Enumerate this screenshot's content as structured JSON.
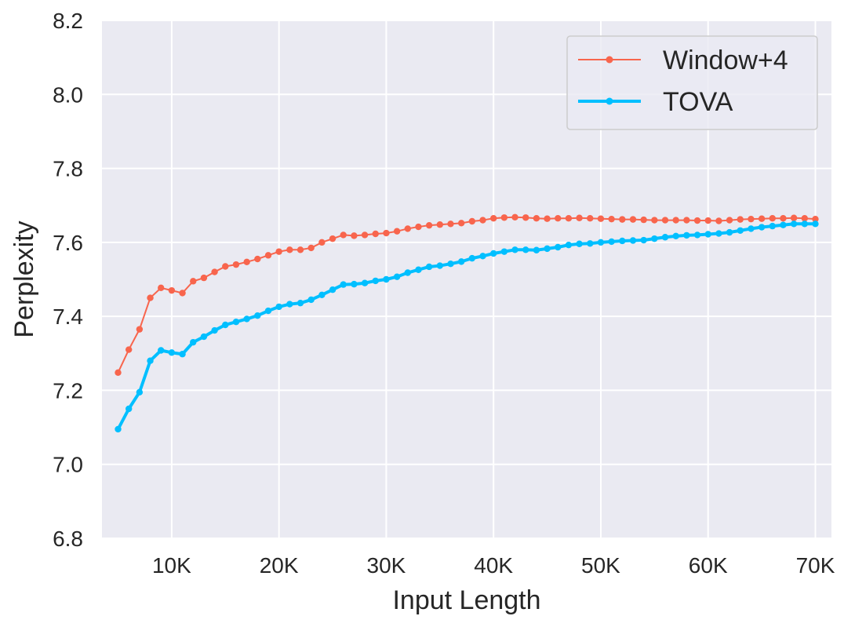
{
  "chart_data": {
    "type": "line",
    "title": "",
    "xlabel": "Input Length",
    "ylabel": "Perplexity",
    "xlim": [
      3500,
      71500
    ],
    "ylim": [
      6.8,
      8.2
    ],
    "x_ticks": [
      10000,
      20000,
      30000,
      40000,
      50000,
      60000,
      70000
    ],
    "x_tick_labels": [
      "10K",
      "20K",
      "30K",
      "40K",
      "50K",
      "60K",
      "70K"
    ],
    "y_ticks": [
      6.8,
      7.0,
      7.2,
      7.4,
      7.6,
      7.8,
      8.0,
      8.2
    ],
    "y_tick_labels": [
      "6.8",
      "7.0",
      "7.2",
      "7.4",
      "7.6",
      "7.8",
      "8.0",
      "8.2"
    ],
    "grid": true,
    "legend_position": "top-right",
    "x": [
      5000,
      6000,
      7000,
      8000,
      9000,
      10000,
      11000,
      12000,
      13000,
      14000,
      15000,
      16000,
      17000,
      18000,
      19000,
      20000,
      21000,
      22000,
      23000,
      24000,
      25000,
      26000,
      27000,
      28000,
      29000,
      30000,
      31000,
      32000,
      33000,
      34000,
      35000,
      36000,
      37000,
      38000,
      39000,
      40000,
      41000,
      42000,
      43000,
      44000,
      45000,
      46000,
      47000,
      48000,
      49000,
      50000,
      51000,
      52000,
      53000,
      54000,
      55000,
      56000,
      57000,
      58000,
      59000,
      60000,
      61000,
      62000,
      63000,
      64000,
      65000,
      66000,
      67000,
      68000,
      69000,
      70000
    ],
    "series": [
      {
        "name": "Window+4",
        "color": "#f8654d",
        "line_width": 2,
        "values": [
          7.248,
          7.31,
          7.365,
          7.45,
          7.477,
          7.47,
          7.463,
          7.495,
          7.504,
          7.52,
          7.535,
          7.54,
          7.547,
          7.555,
          7.565,
          7.575,
          7.58,
          7.58,
          7.585,
          7.6,
          7.61,
          7.62,
          7.618,
          7.62,
          7.623,
          7.625,
          7.63,
          7.637,
          7.642,
          7.646,
          7.648,
          7.65,
          7.652,
          7.657,
          7.66,
          7.665,
          7.667,
          7.668,
          7.667,
          7.665,
          7.664,
          7.665,
          7.665,
          7.666,
          7.665,
          7.664,
          7.663,
          7.662,
          7.662,
          7.661,
          7.66,
          7.66,
          7.66,
          7.66,
          7.659,
          7.659,
          7.658,
          7.66,
          7.662,
          7.663,
          7.664,
          7.665,
          7.665,
          7.666,
          7.665,
          7.663
        ]
      },
      {
        "name": "TOVA",
        "color": "#00bfff",
        "line_width": 4,
        "values": [
          7.095,
          7.15,
          7.195,
          7.28,
          7.308,
          7.302,
          7.298,
          7.33,
          7.345,
          7.362,
          7.377,
          7.385,
          7.393,
          7.402,
          7.415,
          7.426,
          7.433,
          7.436,
          7.445,
          7.458,
          7.472,
          7.486,
          7.487,
          7.49,
          7.496,
          7.5,
          7.507,
          7.518,
          7.526,
          7.534,
          7.537,
          7.542,
          7.548,
          7.557,
          7.563,
          7.57,
          7.575,
          7.58,
          7.58,
          7.579,
          7.583,
          7.587,
          7.593,
          7.596,
          7.597,
          7.6,
          7.602,
          7.604,
          7.605,
          7.606,
          7.61,
          7.614,
          7.617,
          7.619,
          7.62,
          7.622,
          7.624,
          7.627,
          7.632,
          7.637,
          7.641,
          7.644,
          7.647,
          7.65,
          7.65,
          7.65
        ]
      }
    ]
  }
}
